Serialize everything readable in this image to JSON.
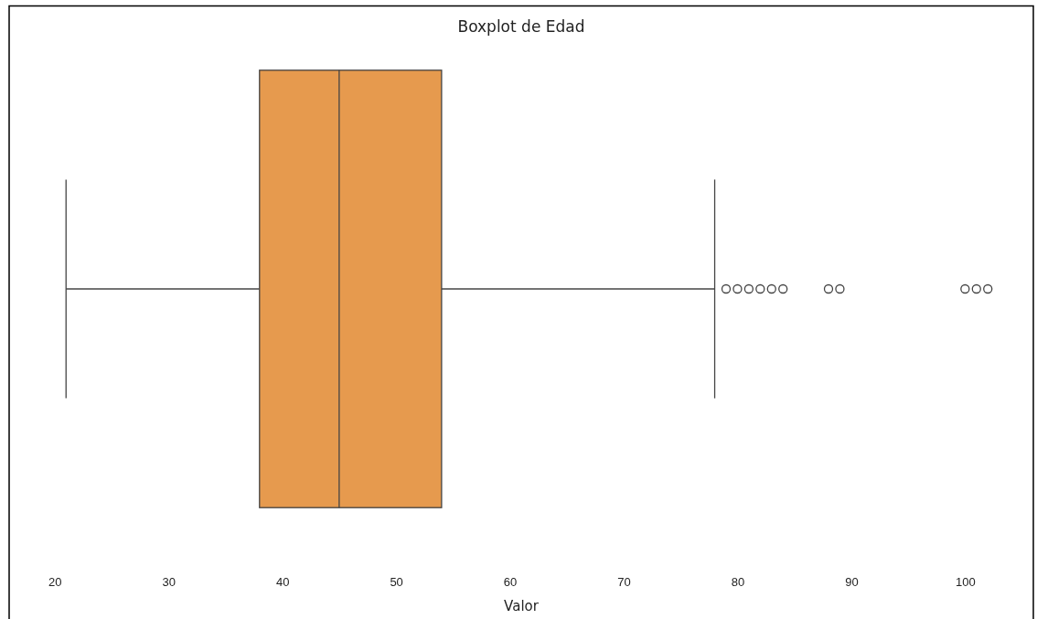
{
  "chart_data": {
    "type": "box",
    "title": "Boxplot de Edad",
    "xlabel": "Valor",
    "orientation": "horizontal",
    "categories": [
      null
    ],
    "color": "#e69a4e",
    "boxes": [
      {
        "low": 21,
        "q1": 38,
        "median": 45,
        "q3": 54,
        "high": 78,
        "outliers": [
          79,
          80,
          81,
          82,
          83,
          84,
          88,
          89,
          100,
          101,
          102
        ]
      }
    ],
    "xlim": [
      16,
      106
    ],
    "xticks": [
      20,
      30,
      40,
      50,
      60,
      70,
      80,
      90,
      100
    ]
  }
}
